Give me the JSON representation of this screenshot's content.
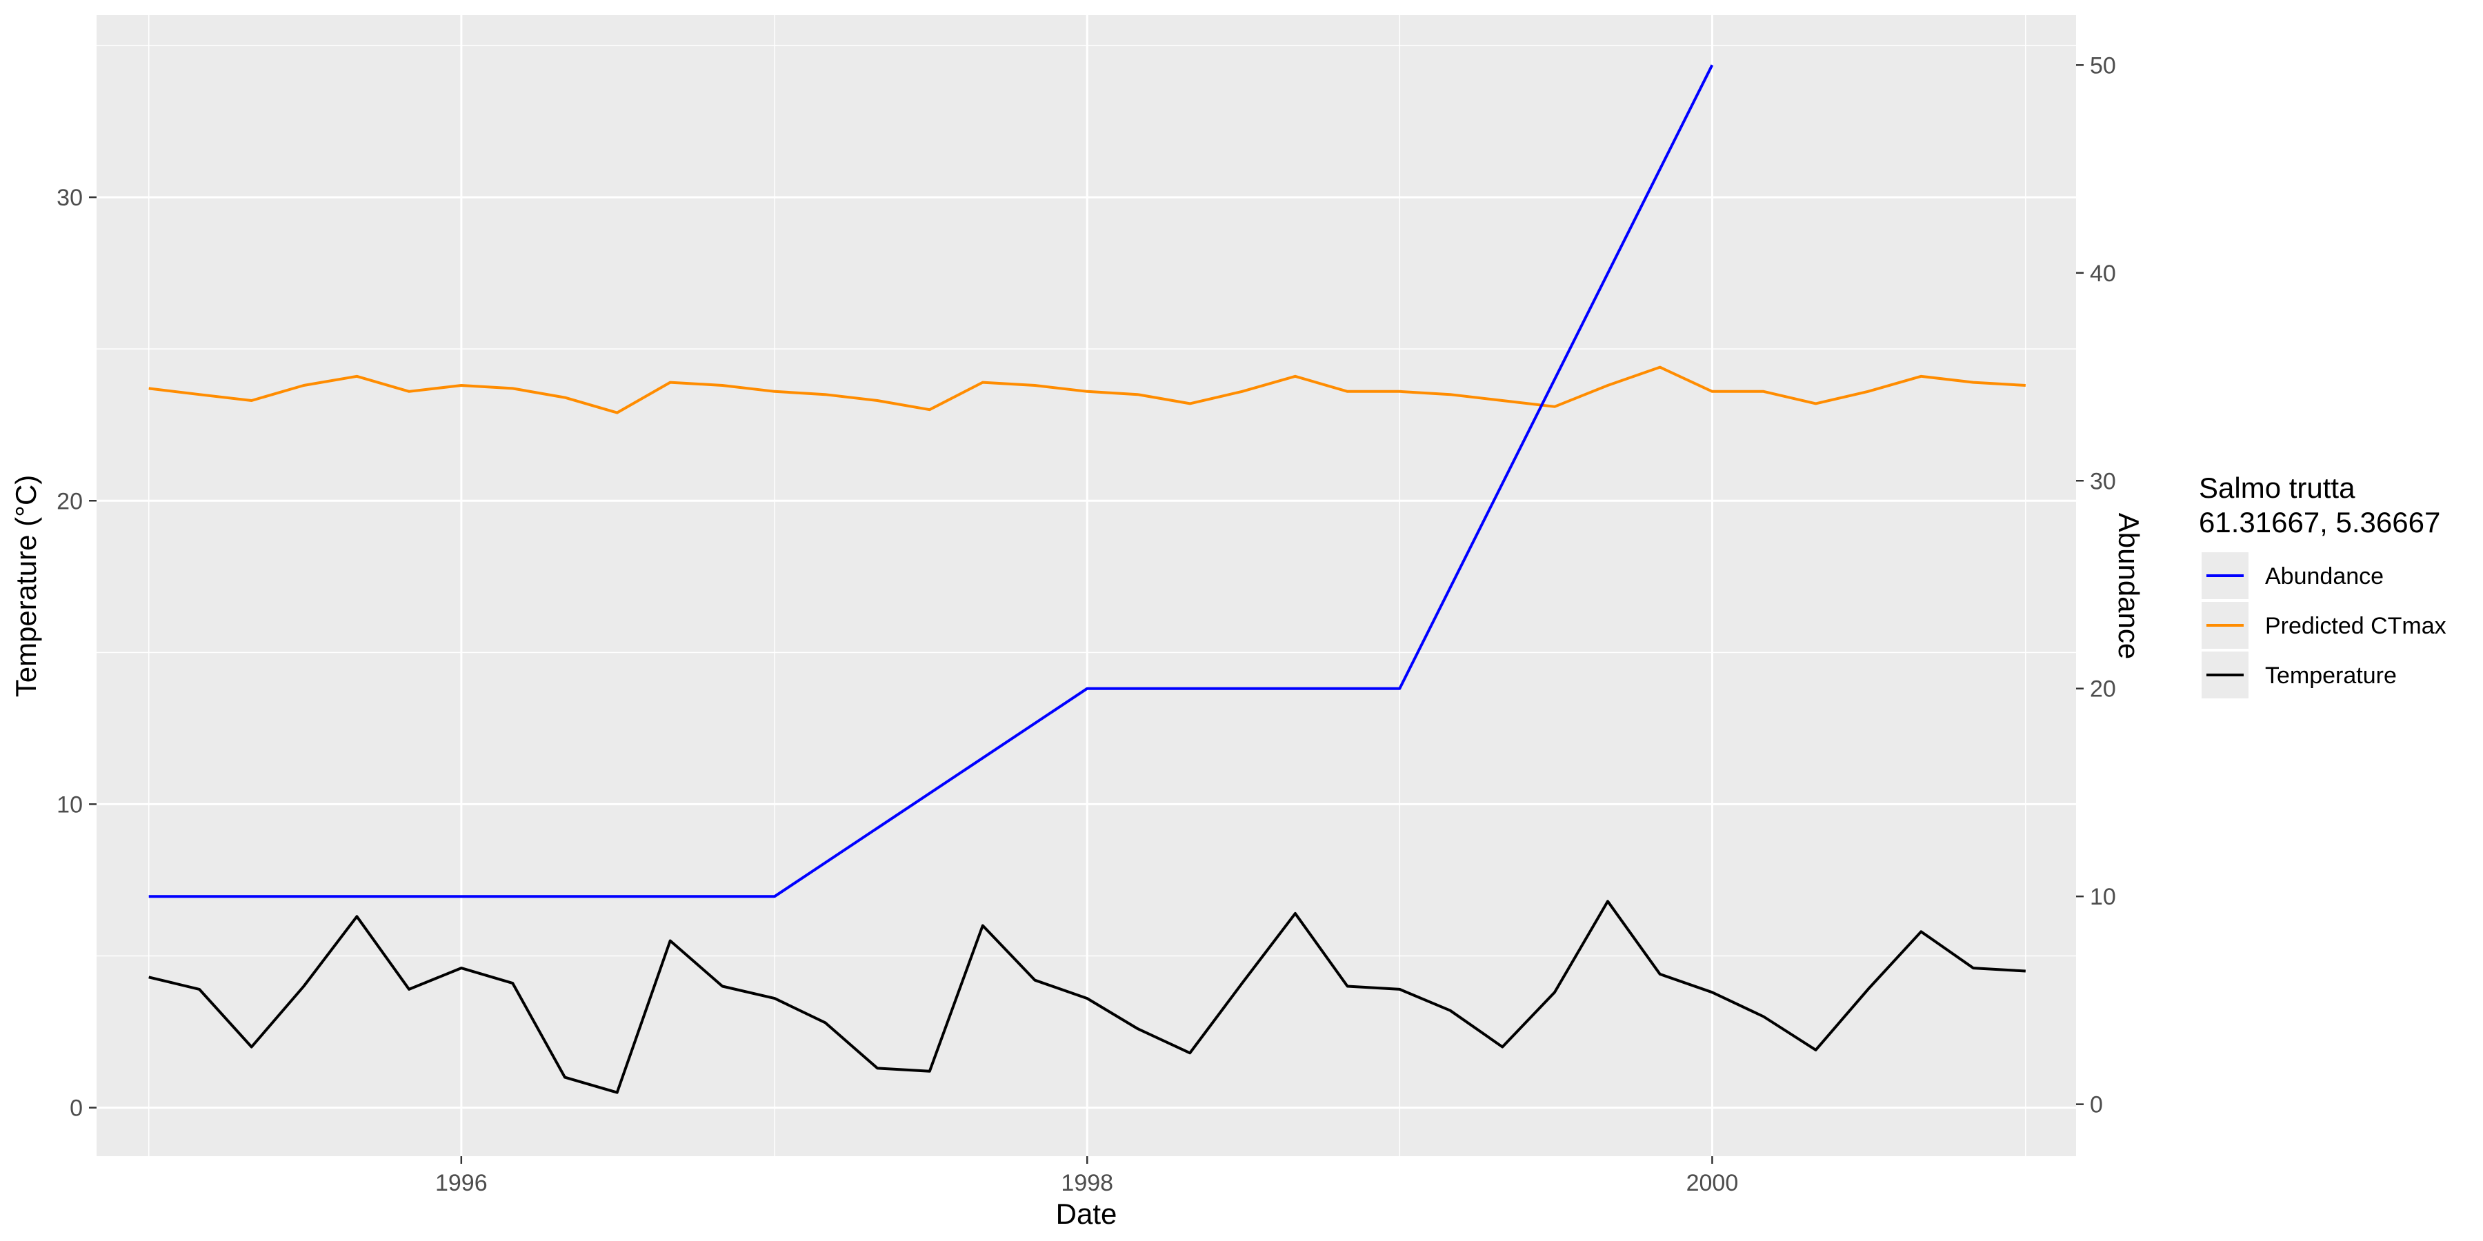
{
  "chart_data": {
    "type": "line",
    "title": "",
    "xlabel": "Date",
    "ylabel": "Temperature (°C)",
    "y2label": "Abundance",
    "x_range": [
      "1994-11-01",
      "2001-03-01"
    ],
    "x_ticks": [
      "1996-01-01",
      "1998-01-01",
      "2000-01-01"
    ],
    "x_tick_labels": [
      "1996",
      "1998",
      "2000"
    ],
    "ylim": [
      -1.6,
      36.0
    ],
    "y_ticks": [
      0,
      10,
      20,
      30
    ],
    "y2lim": [
      -2.5,
      52.4
    ],
    "y2_ticks": [
      0,
      10,
      20,
      30,
      40,
      50
    ],
    "grid": true,
    "legend": {
      "title_line1": "Salmo trutta",
      "title_line2": "61.31667, 5.36667",
      "position": "right",
      "entries": [
        "Abundance",
        "Predicted CTmax",
        "Temperature"
      ]
    },
    "colors": {
      "panel": "#ebebeb",
      "grid": "#ffffff",
      "abundance": "#0000ff",
      "ctmax": "#ff8c00",
      "temperature": "#000000",
      "y2_axis_title": "#0000ff"
    },
    "series": [
      {
        "name": "Abundance",
        "axis": "right",
        "x": [
          "1995-01-01",
          "1996-01-01",
          "1997-01-01",
          "1998-01-01",
          "1999-01-01",
          "2000-01-01"
        ],
        "y": [
          10,
          10,
          10,
          20,
          20,
          50
        ]
      },
      {
        "name": "Predicted CTmax",
        "axis": "left",
        "x": [
          "1995-01-01",
          "1995-03-01",
          "1995-05-01",
          "1995-07-01",
          "1995-09-01",
          "1995-11-01",
          "1996-01-01",
          "1996-03-01",
          "1996-05-01",
          "1996-07-01",
          "1996-09-01",
          "1996-11-01",
          "1997-01-01",
          "1997-03-01",
          "1997-05-01",
          "1997-07-01",
          "1997-09-01",
          "1997-11-01",
          "1998-01-01",
          "1998-03-01",
          "1998-05-01",
          "1998-07-01",
          "1998-09-01",
          "1998-11-01",
          "1999-01-01",
          "1999-03-01",
          "1999-05-01",
          "1999-07-01",
          "1999-09-01",
          "1999-11-01",
          "2000-01-01",
          "2000-03-01",
          "2000-05-01",
          "2000-07-01",
          "2000-09-01",
          "2000-11-01",
          "2001-01-01"
        ],
        "y": [
          23.7,
          23.5,
          23.3,
          23.8,
          24.1,
          23.6,
          23.8,
          23.7,
          23.4,
          22.9,
          23.9,
          23.8,
          23.6,
          23.5,
          23.3,
          23.0,
          23.9,
          23.8,
          23.6,
          23.5,
          23.2,
          23.6,
          24.1,
          23.6,
          23.6,
          23.5,
          23.3,
          23.1,
          23.8,
          24.4,
          23.6,
          23.6,
          23.2,
          23.6,
          24.1,
          23.9,
          23.8
        ]
      },
      {
        "name": "Temperature",
        "axis": "left",
        "x": [
          "1995-01-01",
          "1995-03-01",
          "1995-05-01",
          "1995-07-01",
          "1995-09-01",
          "1995-11-01",
          "1996-01-01",
          "1996-03-01",
          "1996-05-01",
          "1996-07-01",
          "1996-09-01",
          "1996-11-01",
          "1997-01-01",
          "1997-03-01",
          "1997-05-01",
          "1997-07-01",
          "1997-09-01",
          "1997-11-01",
          "1998-01-01",
          "1998-03-01",
          "1998-05-01",
          "1998-07-01",
          "1998-09-01",
          "1998-11-01",
          "1999-01-01",
          "1999-03-01",
          "1999-05-01",
          "1999-07-01",
          "1999-09-01",
          "1999-11-01",
          "2000-01-01",
          "2000-03-01",
          "2000-05-01",
          "2000-07-01",
          "2000-09-01",
          "2000-11-01",
          "2001-01-01"
        ],
        "y": [
          4.3,
          3.9,
          2.0,
          4.0,
          6.3,
          3.9,
          4.6,
          4.1,
          1.0,
          0.5,
          5.5,
          4.0,
          3.6,
          2.8,
          1.3,
          1.2,
          6.0,
          4.2,
          3.6,
          2.6,
          1.8,
          4.1,
          6.4,
          4.0,
          3.9,
          3.2,
          2.0,
          3.8,
          6.8,
          4.4,
          3.8,
          3.0,
          1.9,
          3.9,
          5.8,
          4.6,
          4.5
        ]
      }
    ]
  }
}
